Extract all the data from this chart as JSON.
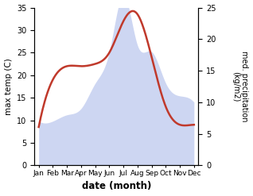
{
  "months": [
    "Jan",
    "Feb",
    "Mar",
    "Apr",
    "May",
    "Jun",
    "Jul",
    "Aug",
    "Sep",
    "Oct",
    "Nov",
    "Dec"
  ],
  "month_positions": [
    0,
    1,
    2,
    3,
    4,
    5,
    6,
    7,
    8,
    9,
    10,
    11
  ],
  "temperature": [
    8.5,
    19.0,
    22.0,
    22.0,
    22.5,
    25.0,
    32.0,
    33.5,
    24.0,
    13.0,
    9.0,
    9.0
  ],
  "precipitation": [
    7.0,
    7.0,
    8.0,
    9.0,
    13.0,
    18.0,
    27.0,
    19.0,
    18.0,
    13.0,
    11.0,
    10.0
  ],
  "temp_color": "#c0392b",
  "precip_color": "#c5cff0",
  "xlabel": "date (month)",
  "ylabel_left": "max temp (C)",
  "ylabel_right": "med. precipitation\n(kg/m2)",
  "ylim_left": [
    0,
    35
  ],
  "ylim_right": [
    0,
    25
  ],
  "yticks_left": [
    0,
    5,
    10,
    15,
    20,
    25,
    30,
    35
  ],
  "yticks_right": [
    0,
    5,
    10,
    15,
    20,
    25
  ],
  "bg_color": "#ffffff",
  "line_width": 1.8,
  "figsize": [
    3.18,
    2.47
  ],
  "dpi": 100
}
